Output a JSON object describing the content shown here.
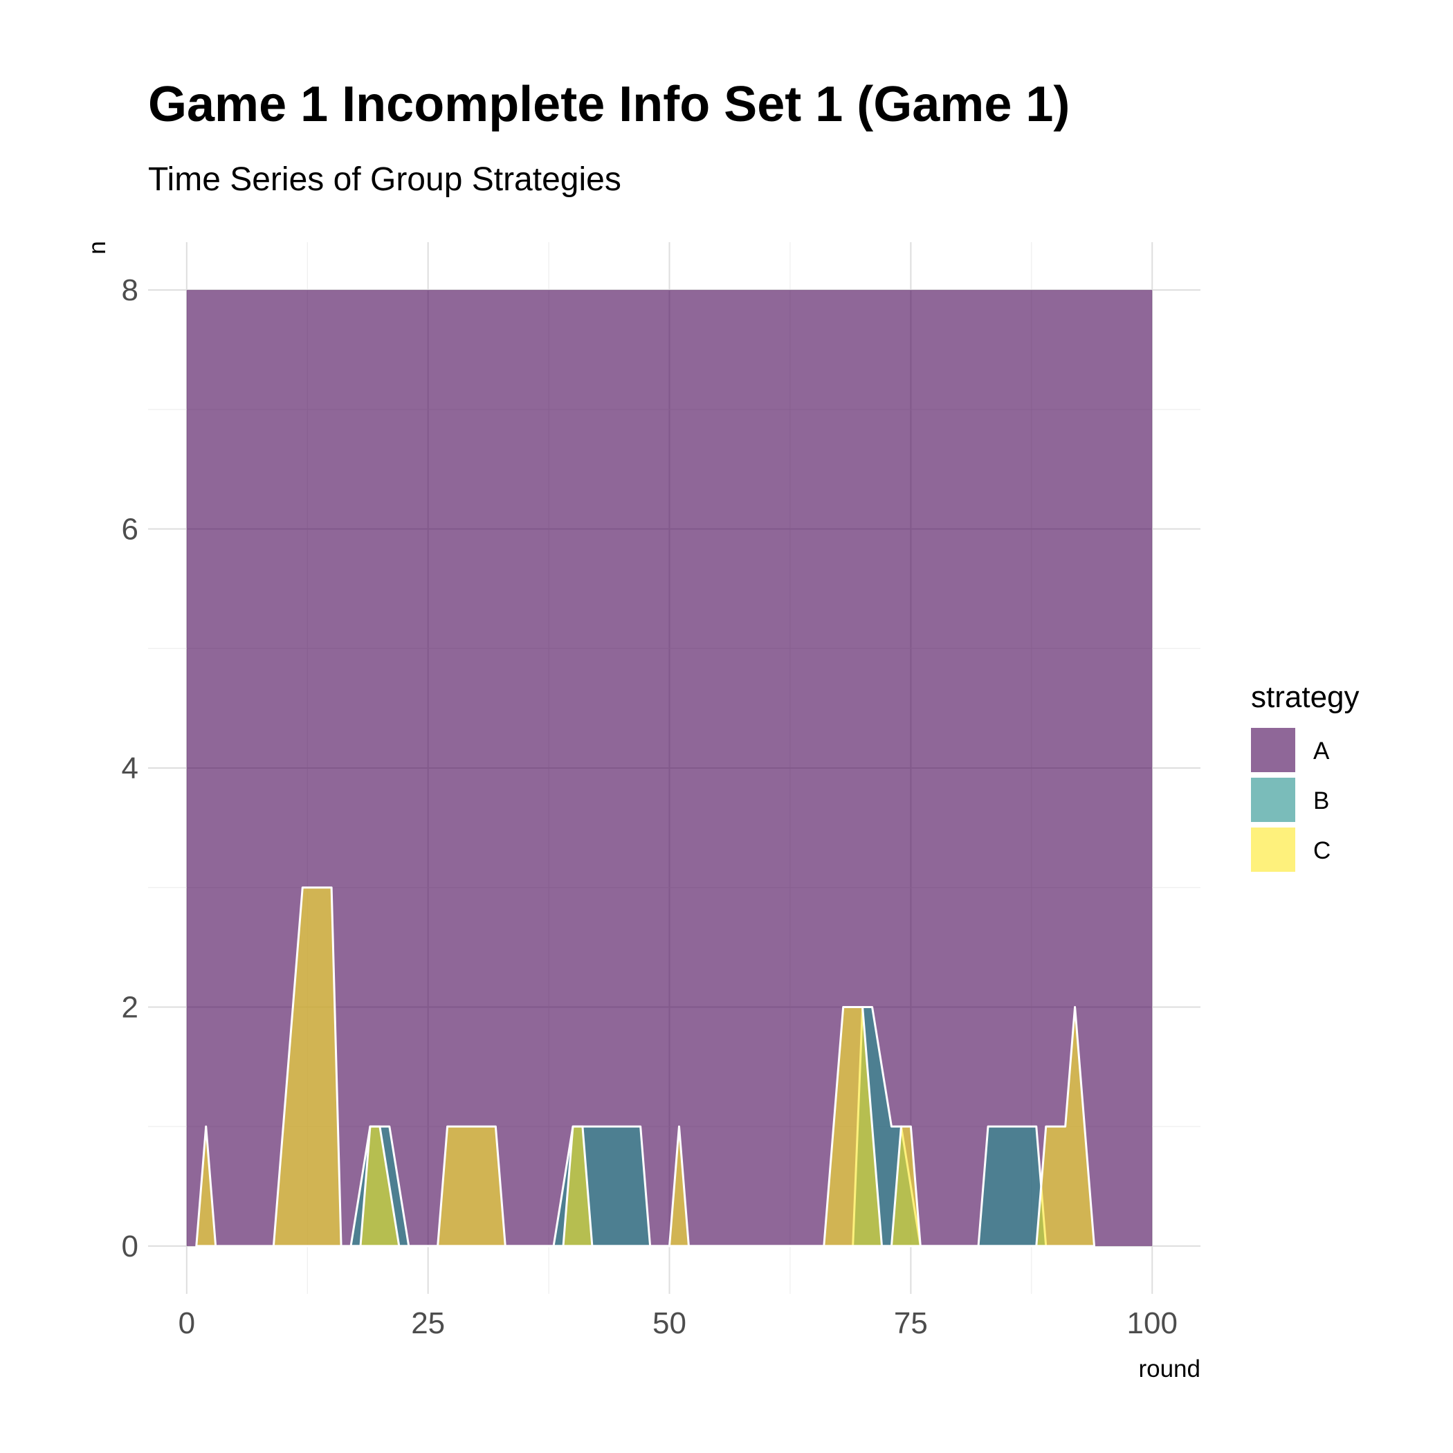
{
  "chart_data": {
    "type": "area",
    "stacked": true,
    "title": "Game 1 Incomplete Info Set 1 (Game 1)",
    "subtitle": "Time Series of Group Strategies",
    "xlabel": "round",
    "ylabel": "n",
    "xlim": [
      -4,
      105
    ],
    "ylim": [
      -0.4,
      8.4
    ],
    "x_ticks": [
      0,
      25,
      50,
      75,
      100
    ],
    "y_ticks": [
      0,
      2,
      4,
      6,
      8
    ],
    "grid": true,
    "legend": {
      "title": "strategy",
      "position": "right"
    },
    "series": [
      {
        "name": "A",
        "color": "#440154",
        "opacity": 0.6,
        "points": [
          [
            0,
            8
          ],
          [
            100,
            8
          ]
        ]
      },
      {
        "name": "B",
        "color": "#21908C",
        "opacity": 0.6,
        "points": [
          [
            17,
            0
          ],
          [
            19,
            1
          ],
          [
            21,
            1
          ],
          [
            23,
            0
          ],
          [
            38,
            0
          ],
          [
            40,
            1
          ],
          [
            47,
            1
          ],
          [
            48,
            0
          ],
          [
            69,
            0
          ],
          [
            70,
            2
          ],
          [
            71,
            2
          ],
          [
            73,
            1
          ],
          [
            74,
            1
          ],
          [
            76,
            0
          ],
          [
            82,
            0
          ],
          [
            83,
            1
          ],
          [
            88,
            1
          ],
          [
            89,
            0
          ]
        ]
      },
      {
        "name": "C",
        "color": "#FDE725",
        "opacity": 0.6,
        "points": [
          [
            1,
            0
          ],
          [
            2,
            1
          ],
          [
            3,
            0
          ],
          [
            9,
            0
          ],
          [
            12,
            3
          ],
          [
            15,
            3
          ],
          [
            16,
            0
          ],
          [
            18,
            0
          ],
          [
            19,
            1
          ],
          [
            20,
            1
          ],
          [
            22,
            0
          ],
          [
            26,
            0
          ],
          [
            27,
            1
          ],
          [
            32,
            1
          ],
          [
            33,
            0
          ],
          [
            39,
            0
          ],
          [
            40,
            1
          ],
          [
            41,
            1
          ],
          [
            42,
            0
          ],
          [
            50,
            0
          ],
          [
            51,
            1
          ],
          [
            52,
            0
          ],
          [
            53,
            0
          ],
          [
            66,
            0
          ],
          [
            68,
            2
          ],
          [
            70,
            2
          ],
          [
            72,
            0
          ],
          [
            73,
            0
          ],
          [
            74,
            1
          ],
          [
            75,
            1
          ],
          [
            76,
            0
          ],
          [
            88,
            0
          ],
          [
            89,
            1
          ],
          [
            91,
            1
          ],
          [
            92,
            2
          ],
          [
            94,
            0
          ]
        ]
      }
    ]
  }
}
